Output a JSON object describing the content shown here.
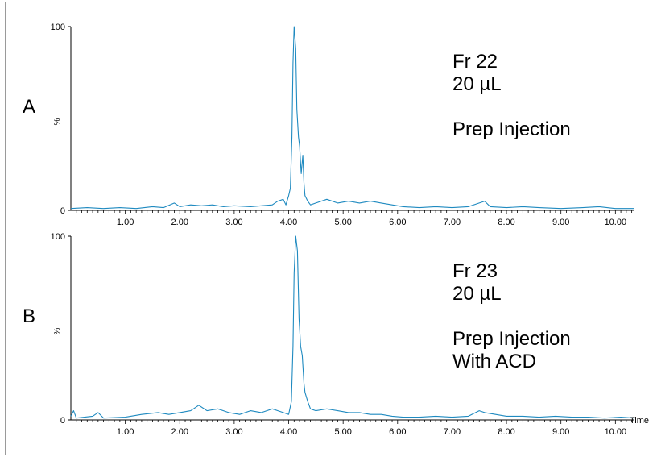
{
  "chart_data": [
    {
      "type": "line",
      "panel_label": "A",
      "annotations": [
        "Fr 22",
        "20 µL",
        "",
        "Prep Injection"
      ],
      "y_axis_text": "%",
      "y_ticks": [
        "0",
        "100"
      ],
      "x_ticks": [
        "1.00",
        "2.00",
        "3.00",
        "4.00",
        "5.00",
        "6.00",
        "7.00",
        "8.00",
        "9.00",
        "10.00"
      ],
      "xlim": [
        0,
        10.35
      ],
      "ylim": [
        0,
        100
      ],
      "color": "#1f8ac0",
      "peak": {
        "x": 4.1,
        "y": 100
      },
      "points": [
        [
          0.0,
          1
        ],
        [
          0.3,
          1.5
        ],
        [
          0.6,
          1
        ],
        [
          0.9,
          1.5
        ],
        [
          1.2,
          1
        ],
        [
          1.5,
          2
        ],
        [
          1.7,
          1.5
        ],
        [
          1.9,
          4
        ],
        [
          2.0,
          2
        ],
        [
          2.2,
          3
        ],
        [
          2.4,
          2.5
        ],
        [
          2.6,
          3
        ],
        [
          2.8,
          2
        ],
        [
          3.0,
          2.5
        ],
        [
          3.3,
          2
        ],
        [
          3.5,
          2.5
        ],
        [
          3.7,
          3
        ],
        [
          3.8,
          5
        ],
        [
          3.9,
          6
        ],
        [
          3.95,
          3
        ],
        [
          4.0,
          8
        ],
        [
          4.03,
          12
        ],
        [
          4.06,
          40
        ],
        [
          4.08,
          80
        ],
        [
          4.1,
          100
        ],
        [
          4.13,
          88
        ],
        [
          4.15,
          55
        ],
        [
          4.18,
          40
        ],
        [
          4.2,
          35
        ],
        [
          4.23,
          20
        ],
        [
          4.26,
          30
        ],
        [
          4.28,
          15
        ],
        [
          4.3,
          8
        ],
        [
          4.35,
          5
        ],
        [
          4.4,
          3
        ],
        [
          4.5,
          4
        ],
        [
          4.7,
          6
        ],
        [
          4.9,
          4
        ],
        [
          5.1,
          5
        ],
        [
          5.3,
          4
        ],
        [
          5.5,
          5
        ],
        [
          5.7,
          4
        ],
        [
          5.9,
          3
        ],
        [
          6.1,
          2
        ],
        [
          6.4,
          1.5
        ],
        [
          6.7,
          2
        ],
        [
          7.0,
          1.5
        ],
        [
          7.3,
          2
        ],
        [
          7.5,
          4
        ],
        [
          7.6,
          5
        ],
        [
          7.7,
          2
        ],
        [
          8.0,
          1.5
        ],
        [
          8.3,
          2
        ],
        [
          8.6,
          1.5
        ],
        [
          9.0,
          1
        ],
        [
          9.4,
          1.5
        ],
        [
          9.7,
          2
        ],
        [
          10.0,
          1
        ],
        [
          10.35,
          1
        ]
      ]
    },
    {
      "type": "line",
      "panel_label": "B",
      "annotations": [
        "Fr 23",
        "20 µL",
        "",
        "Prep Injection",
        "With ACD"
      ],
      "y_axis_text": "%",
      "y_ticks": [
        "0",
        "100"
      ],
      "x_ticks": [
        "1.00",
        "2.00",
        "3.00",
        "4.00",
        "5.00",
        "6.00",
        "7.00",
        "8.00",
        "9.00",
        "10.00"
      ],
      "x_axis_title": "Time",
      "xlim": [
        0,
        10.35
      ],
      "ylim": [
        0,
        100
      ],
      "color": "#1f8ac0",
      "peak": {
        "x": 4.13,
        "y": 100
      },
      "points": [
        [
          0.0,
          2
        ],
        [
          0.05,
          5
        ],
        [
          0.1,
          1
        ],
        [
          0.4,
          2
        ],
        [
          0.5,
          4
        ],
        [
          0.6,
          1
        ],
        [
          1.0,
          1.5
        ],
        [
          1.3,
          3
        ],
        [
          1.6,
          4
        ],
        [
          1.8,
          3
        ],
        [
          2.0,
          4
        ],
        [
          2.2,
          5
        ],
        [
          2.35,
          8
        ],
        [
          2.5,
          5
        ],
        [
          2.7,
          6
        ],
        [
          2.9,
          4
        ],
        [
          3.1,
          3
        ],
        [
          3.3,
          5
        ],
        [
          3.5,
          4
        ],
        [
          3.7,
          6
        ],
        [
          3.9,
          4
        ],
        [
          4.0,
          3
        ],
        [
          4.05,
          10
        ],
        [
          4.08,
          40
        ],
        [
          4.1,
          80
        ],
        [
          4.13,
          100
        ],
        [
          4.16,
          92
        ],
        [
          4.19,
          55
        ],
        [
          4.22,
          40
        ],
        [
          4.25,
          35
        ],
        [
          4.28,
          20
        ],
        [
          4.3,
          15
        ],
        [
          4.35,
          10
        ],
        [
          4.4,
          6
        ],
        [
          4.5,
          5
        ],
        [
          4.7,
          6
        ],
        [
          4.9,
          5
        ],
        [
          5.1,
          4
        ],
        [
          5.3,
          4
        ],
        [
          5.5,
          3
        ],
        [
          5.7,
          3
        ],
        [
          5.9,
          2
        ],
        [
          6.1,
          1.5
        ],
        [
          6.4,
          1.5
        ],
        [
          6.7,
          2
        ],
        [
          7.0,
          1.5
        ],
        [
          7.3,
          2
        ],
        [
          7.5,
          5
        ],
        [
          7.6,
          4
        ],
        [
          7.8,
          3
        ],
        [
          8.0,
          2
        ],
        [
          8.3,
          2
        ],
        [
          8.6,
          1.5
        ],
        [
          8.9,
          2
        ],
        [
          9.2,
          1.5
        ],
        [
          9.5,
          1.5
        ],
        [
          9.8,
          1
        ],
        [
          10.1,
          1.5
        ],
        [
          10.35,
          1
        ]
      ]
    }
  ]
}
